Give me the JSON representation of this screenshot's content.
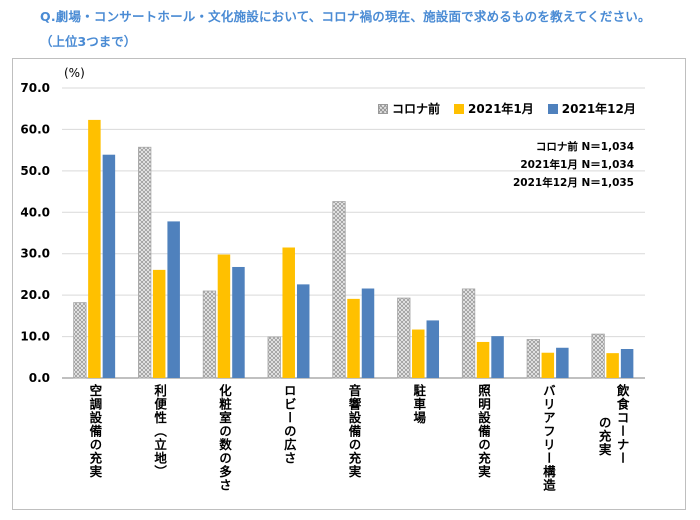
{
  "question": {
    "line1": "Q.劇場・コンサートホール・文化施設において、コロナ禍の現在、施設面で求めるものを教えてください。",
    "line2": "（上位3つまで）"
  },
  "notes": [
    "コロナ前 N＝1,034",
    "2021年1月 N＝1,034",
    "2021年12月 N＝1,035"
  ],
  "colors": {
    "before": "#d9d9d9",
    "jan2021": "#ffc000",
    "dec2021": "#4f81bd"
  },
  "chart_data": {
    "type": "bar",
    "title": "Q.劇場・コンサートホール・文化施設において、コロナ禍の現在、施設面で求めるものを教えてください。（上位3つまで）",
    "ylabel": "(%)",
    "ylim": [
      0,
      70
    ],
    "yticks": [
      "0.0",
      "10.0",
      "20.0",
      "30.0",
      "40.0",
      "50.0",
      "60.0",
      "70.0"
    ],
    "grid": true,
    "legend_position": "top-right",
    "categories": [
      [
        "空調設備の充実"
      ],
      [
        "利便性（立地）"
      ],
      [
        "化粧室の数の多さ"
      ],
      [
        "ロビーの広さ"
      ],
      [
        "音響設備の充実"
      ],
      [
        "駐車場"
      ],
      [
        "照明設備の充実"
      ],
      [
        "バリアフリー構造"
      ],
      [
        "飲食コーナー",
        "の充実"
      ]
    ],
    "series": [
      {
        "name": "コロナ前",
        "values": [
          18.2,
          55.7,
          21.0,
          9.9,
          42.6,
          19.3,
          21.5,
          9.3,
          10.6
        ]
      },
      {
        "name": "2021年1月",
        "values": [
          62.3,
          26.1,
          29.8,
          31.5,
          19.1,
          11.7,
          8.7,
          6.1,
          6.0
        ]
      },
      {
        "name": "2021年12月",
        "values": [
          53.9,
          37.8,
          26.8,
          22.6,
          21.6,
          13.9,
          10.1,
          7.3,
          7.0
        ]
      }
    ]
  }
}
